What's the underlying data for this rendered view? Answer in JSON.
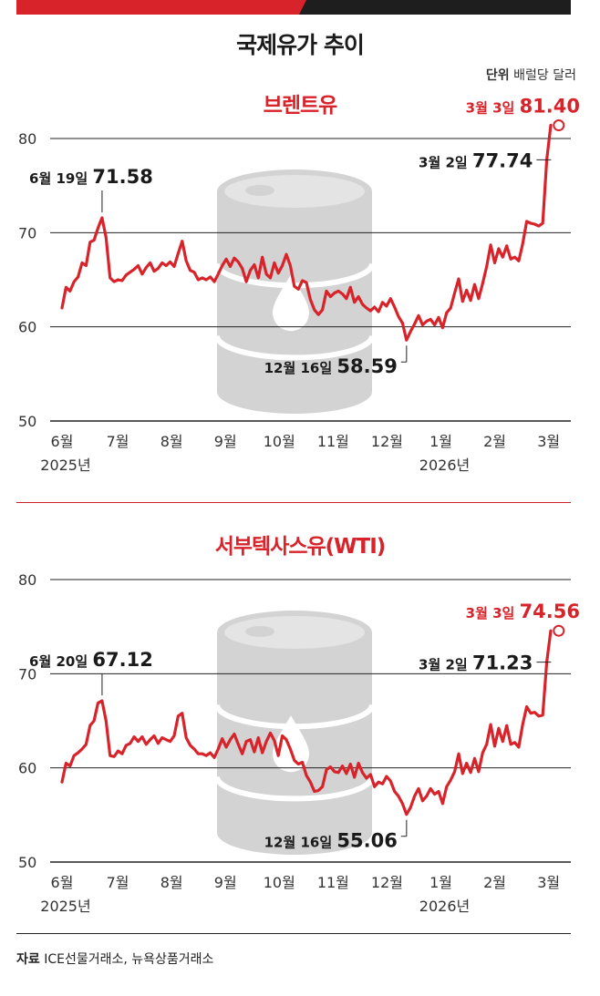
{
  "title": "국제유가 추이",
  "unit": {
    "label": "단위",
    "value": "배럴당 달러"
  },
  "source": {
    "label": "자료",
    "value": "ICE선물거래소, 뉴욕상품거래소"
  },
  "colors": {
    "accent": "#d8232a",
    "barrel": "#d0d0d0",
    "axis": "#222222"
  },
  "chart_data": [
    {
      "type": "line",
      "title": "브렌트유",
      "ylim": [
        50,
        80
      ],
      "yticks": [
        50,
        60,
        70,
        80
      ],
      "x_range": [
        0,
        270
      ],
      "x_ticks": [
        {
          "x": 0,
          "label": "6월",
          "year": "2025년"
        },
        {
          "x": 29,
          "label": "7월"
        },
        {
          "x": 58,
          "label": "8월"
        },
        {
          "x": 87,
          "label": "9월"
        },
        {
          "x": 116,
          "label": "10월"
        },
        {
          "x": 145,
          "label": "11월"
        },
        {
          "x": 174,
          "label": "12월"
        },
        {
          "x": 203,
          "label": "1월",
          "year": "2026년"
        },
        {
          "x": 232,
          "label": "2월"
        },
        {
          "x": 261,
          "label": "3월"
        }
      ],
      "values": [
        62.0,
        64.2,
        63.8,
        64.8,
        65.3,
        66.8,
        66.5,
        69.0,
        69.2,
        70.5,
        71.58,
        69.5,
        65.2,
        64.8,
        65.0,
        64.9,
        65.5,
        65.8,
        66.1,
        66.5,
        65.6,
        66.3,
        66.8,
        65.9,
        66.2,
        66.8,
        66.5,
        66.9,
        66.4,
        67.8,
        69.1,
        67.0,
        66.0,
        65.8,
        65.0,
        65.2,
        65.0,
        65.3,
        64.8,
        65.6,
        66.5,
        67.2,
        66.4,
        67.3,
        66.9,
        66.2,
        64.8,
        66.0,
        66.6,
        65.2,
        67.4,
        65.6,
        65.2,
        66.8,
        65.7,
        66.5,
        67.7,
        66.5,
        64.3,
        64.0,
        64.9,
        64.7,
        62.9,
        61.8,
        61.3,
        61.8,
        63.8,
        63.2,
        63.6,
        63.8,
        63.5,
        63.0,
        64.2,
        62.6,
        63.2,
        62.4,
        62.0,
        61.7,
        62.1,
        61.6,
        62.6,
        62.2,
        63.0,
        62.1,
        61.1,
        60.4,
        58.59,
        59.5,
        60.3,
        61.2,
        60.2,
        60.6,
        60.8,
        60.2,
        61.0,
        59.9,
        61.5,
        62.0,
        63.6,
        65.1,
        62.7,
        63.9,
        62.8,
        64.5,
        63.0,
        64.6,
        66.4,
        68.7,
        66.8,
        68.3,
        67.4,
        68.6,
        67.2,
        67.4,
        67.0,
        68.8,
        71.2,
        71.0,
        70.9,
        70.7,
        71.0,
        77.74,
        81.4
      ],
      "annotations": [
        {
          "index": 10,
          "date": "6월 19일",
          "value": "71.58",
          "value_num": 71.58,
          "pos": "above"
        },
        {
          "index": 86,
          "date": "12월 16일",
          "value": "58.59",
          "value_num": 58.59,
          "pos": "below"
        },
        {
          "index": 123,
          "date": "3월 2일",
          "value": "77.74",
          "value_num": 77.74,
          "pos": "left"
        },
        {
          "index": 124,
          "date": "3월 3일",
          "value": "81.40",
          "value_num": 81.4,
          "pos": "top",
          "highlight": true
        }
      ]
    },
    {
      "type": "line",
      "title": "서부텍사스유(WTI)",
      "ylim": [
        50,
        80
      ],
      "yticks": [
        50,
        60,
        70,
        80
      ],
      "x_range": [
        0,
        270
      ],
      "x_ticks": [
        {
          "x": 0,
          "label": "6월",
          "year": "2025년"
        },
        {
          "x": 29,
          "label": "7월"
        },
        {
          "x": 58,
          "label": "8월"
        },
        {
          "x": 87,
          "label": "9월"
        },
        {
          "x": 116,
          "label": "10월"
        },
        {
          "x": 145,
          "label": "11월"
        },
        {
          "x": 174,
          "label": "12월"
        },
        {
          "x": 203,
          "label": "1월",
          "year": "2026년"
        },
        {
          "x": 232,
          "label": "2월"
        },
        {
          "x": 261,
          "label": "3월"
        }
      ],
      "values": [
        58.5,
        60.5,
        60.2,
        61.3,
        61.6,
        62.0,
        62.5,
        64.5,
        65.0,
        66.9,
        67.12,
        65.0,
        61.3,
        61.2,
        61.8,
        61.5,
        62.4,
        62.6,
        63.3,
        62.8,
        63.3,
        62.5,
        63.0,
        63.4,
        62.6,
        63.2,
        63.0,
        62.8,
        63.4,
        65.5,
        65.8,
        63.2,
        62.4,
        62.0,
        61.5,
        61.5,
        61.3,
        61.6,
        61.1,
        62.0,
        63.1,
        62.2,
        63.0,
        63.6,
        62.5,
        61.5,
        62.8,
        63.0,
        61.7,
        63.2,
        61.6,
        62.8,
        63.7,
        62.9,
        61.3,
        63.4,
        63.0,
        62.0,
        60.8,
        60.4,
        60.6,
        59.2,
        58.5,
        57.5,
        57.6,
        58.0,
        59.8,
        60.1,
        59.6,
        59.5,
        60.2,
        59.4,
        60.4,
        59.0,
        60.5,
        59.5,
        58.9,
        59.3,
        58.0,
        58.5,
        58.3,
        59.1,
        58.6,
        57.5,
        57.0,
        56.2,
        55.06,
        55.8,
        57.0,
        57.8,
        56.5,
        57.0,
        57.8,
        57.2,
        57.5,
        56.2,
        58.0,
        58.7,
        59.6,
        61.5,
        59.4,
        60.5,
        59.5,
        61.0,
        59.6,
        61.6,
        62.5,
        64.6,
        62.3,
        64.2,
        62.8,
        64.5,
        62.5,
        62.7,
        62.2,
        64.6,
        66.5,
        65.8,
        65.9,
        65.5,
        65.6,
        71.23,
        74.56
      ],
      "annotations": [
        {
          "index": 10,
          "date": "6월 20일",
          "value": "67.12",
          "value_num": 67.12,
          "pos": "above"
        },
        {
          "index": 86,
          "date": "12월 16일",
          "value": "55.06",
          "value_num": 55.06,
          "pos": "below"
        },
        {
          "index": 123,
          "date": "3월 2일",
          "value": "71.23",
          "value_num": 71.23,
          "pos": "left"
        },
        {
          "index": 124,
          "date": "3월 3일",
          "value": "74.56",
          "value_num": 74.56,
          "pos": "top",
          "highlight": true
        }
      ]
    }
  ]
}
